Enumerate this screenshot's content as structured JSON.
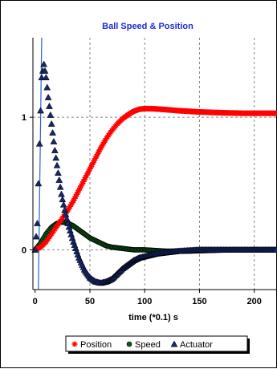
{
  "chart_data": {
    "type": "scatter",
    "title": "Ball Speed & Position",
    "xlabel": "time (*0.1) s",
    "ylabel": "",
    "xlim": [
      -2,
      220
    ],
    "ylim": [
      -0.3,
      1.6
    ],
    "xticks": [
      0,
      50,
      100,
      150,
      200
    ],
    "xtick_labels": [
      "0",
      "50",
      "100",
      "150",
      "200"
    ],
    "yticks": [
      0,
      1
    ],
    "ytick_labels": [
      "0",
      "1"
    ],
    "grid": true,
    "legend_position": "bottom",
    "series": [
      {
        "name": "Position",
        "marker": "star",
        "color": "#ff0000",
        "x": [
          0,
          5,
          10,
          15,
          20,
          25,
          30,
          35,
          40,
          45,
          50,
          55,
          60,
          65,
          70,
          75,
          80,
          85,
          90,
          95,
          100,
          105,
          110,
          120,
          130,
          140,
          150,
          160,
          170,
          180,
          190,
          200,
          210,
          220
        ],
        "y": [
          0,
          0.02,
          0.06,
          0.12,
          0.18,
          0.24,
          0.3,
          0.37,
          0.45,
          0.53,
          0.61,
          0.69,
          0.77,
          0.84,
          0.9,
          0.95,
          0.99,
          1.02,
          1.045,
          1.06,
          1.065,
          1.065,
          1.063,
          1.057,
          1.05,
          1.045,
          1.04,
          1.037,
          1.034,
          1.032,
          1.03,
          1.03,
          1.03,
          1.03
        ]
      },
      {
        "name": "Speed",
        "marker": "circle",
        "color": "#0c5a16",
        "x": [
          0,
          5,
          10,
          15,
          20,
          25,
          30,
          35,
          40,
          45,
          50,
          55,
          60,
          65,
          70,
          80,
          90,
          100,
          110,
          120,
          130,
          140,
          160,
          180,
          200,
          220
        ],
        "y": [
          0,
          0.05,
          0.12,
          0.17,
          0.2,
          0.21,
          0.2,
          0.18,
          0.15,
          0.12,
          0.09,
          0.07,
          0.05,
          0.03,
          0.02,
          0.01,
          0.0,
          0.0,
          -0.005,
          -0.01,
          -0.01,
          -0.01,
          -0.005,
          0.0,
          0.0,
          0.0
        ]
      },
      {
        "name": "Actuator",
        "marker": "triangle",
        "color": "#15276b",
        "x": [
          0,
          2,
          4,
          6,
          8,
          10,
          12,
          15,
          18,
          21,
          24,
          27,
          30,
          35,
          40,
          45,
          50,
          55,
          60,
          65,
          70,
          75,
          80,
          85,
          90,
          95,
          100,
          110,
          120,
          130,
          140,
          150,
          160,
          180,
          200,
          220
        ],
        "y": [
          0,
          0.2,
          0.8,
          1.3,
          1.4,
          1.3,
          1.15,
          0.95,
          0.75,
          0.58,
          0.42,
          0.3,
          0.2,
          0.06,
          -0.06,
          -0.15,
          -0.21,
          -0.24,
          -0.25,
          -0.24,
          -0.22,
          -0.18,
          -0.14,
          -0.11,
          -0.08,
          -0.06,
          -0.05,
          -0.03,
          -0.02,
          -0.01,
          -0.005,
          0.0,
          0.0,
          0.0,
          0.0,
          0.0
        ]
      }
    ],
    "spike": {
      "color": "#2a64c8",
      "x": [
        3,
        6
      ],
      "y": [
        -0.3,
        1.6
      ]
    }
  }
}
